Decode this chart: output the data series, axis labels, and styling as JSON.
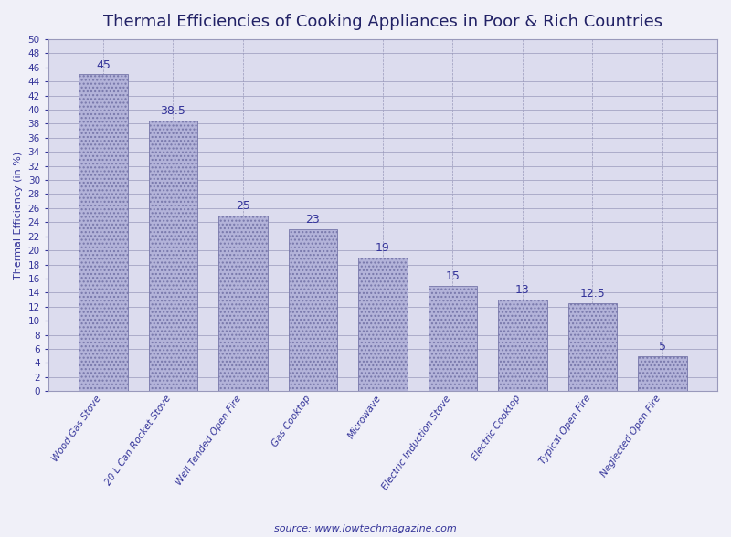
{
  "title": "Thermal Efficiencies of Cooking Appliances in Poor & Rich Countries",
  "categories": [
    "Wood Gas Stove",
    "20 L Can Rocket Stove",
    "Well Tended Open Fire",
    "Gas Cooktop",
    "Microwave",
    "Electric Induction Stove",
    "Electric Cooktop",
    "Typical Open Fire",
    "Neglected Open Fire"
  ],
  "values": [
    45,
    38.5,
    25,
    23,
    19,
    15,
    13,
    12.5,
    5
  ],
  "bar_color": "#b3b3d9",
  "bar_edgecolor": "#7777aa",
  "ylabel": "Thermal Efficiency (in %)",
  "ylim": [
    0,
    50
  ],
  "yticks": [
    0,
    2,
    4,
    6,
    8,
    10,
    12,
    14,
    16,
    18,
    20,
    22,
    24,
    26,
    28,
    30,
    32,
    34,
    36,
    38,
    40,
    42,
    44,
    46,
    48,
    50
  ],
  "source_text": "source: www.lowtechmagazine.com",
  "title_fontsize": 13,
  "label_fontsize": 8,
  "tick_fontsize": 7.5,
  "value_fontsize": 9,
  "outer_bg_color": "#f0f0f8",
  "plot_bg_color": "#dcdcee",
  "grid_color": "#9999bb",
  "text_color": "#333399",
  "title_color": "#222266"
}
